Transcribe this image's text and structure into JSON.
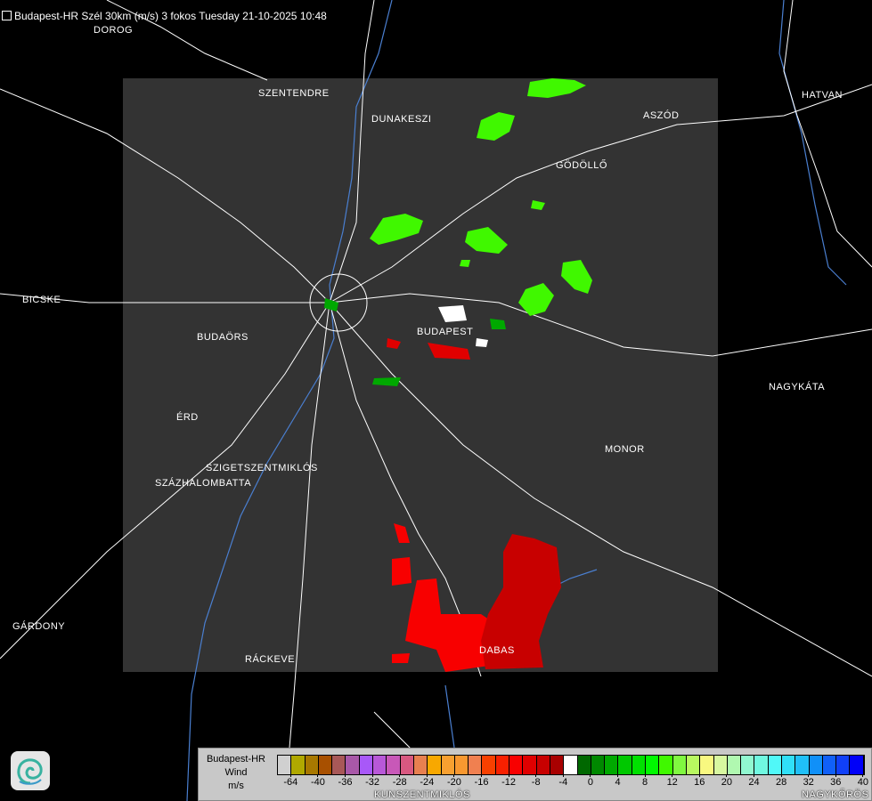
{
  "title": "Budapest-HR Szél 30km (m/s) 3 fokos Tuesday 21-10-2025 10:48",
  "cities": [
    {
      "name": "DOROG"
    },
    {
      "name": "SZENTENDRE"
    },
    {
      "name": "DUNAKESZI"
    },
    {
      "name": "ASZÓD"
    },
    {
      "name": "HATVAN"
    },
    {
      "name": "GÖDÖLLŐ"
    },
    {
      "name": "BICSKE"
    },
    {
      "name": "BUDAÖRS"
    },
    {
      "name": "BUDAPEST"
    },
    {
      "name": "NAGYKÁTA"
    },
    {
      "name": "ÉRD"
    },
    {
      "name": "MONOR"
    },
    {
      "name": "SZIGETSZENTMIKLÓS"
    },
    {
      "name": "SZÁZHALOMBATTA"
    },
    {
      "name": "GÁRDONY"
    },
    {
      "name": "RÁCKEVE"
    },
    {
      "name": "DABAS"
    },
    {
      "name": "KUNSZENTMIKLÓS"
    },
    {
      "name": "NAGYKŐRÖS"
    }
  ],
  "legend": {
    "line1": "Budapest-HR",
    "line2": "Wind",
    "line3": "m/s",
    "colors": [
      "#d0d0d0",
      "#b0a800",
      "#a87800",
      "#a85000",
      "#a85858",
      "#a858a8",
      "#a858f8",
      "#b858d8",
      "#c858b8",
      "#d85880",
      "#e88050",
      "#f8a800",
      "#f8a030",
      "#f89830",
      "#f08050",
      "#f84000",
      "#f82000",
      "#f80000",
      "#e00000",
      "#c80000",
      "#a80000",
      "#ffffff",
      "#006800",
      "#008800",
      "#00a800",
      "#00c800",
      "#00e000",
      "#00f800",
      "#40f800",
      "#80f840",
      "#b8f860",
      "#f8f880",
      "#d8f8a0",
      "#b0f8b0",
      "#90f8d0",
      "#70f8e0",
      "#50f8f8",
      "#30e0f8",
      "#20c0f8",
      "#1090f8",
      "#1060f8",
      "#1040f8",
      "#0000f8"
    ],
    "ticks": [
      "-64",
      "-40",
      "-36",
      "-32",
      "-28",
      "-24",
      "-20",
      "-16",
      "-12",
      "-8",
      "-4",
      "0",
      "4",
      "8",
      "12",
      "16",
      "20",
      "24",
      "28",
      "32",
      "36",
      "40"
    ]
  },
  "colors": {
    "radar_area": "#333333",
    "background": "#000000",
    "roads": "#ffffff",
    "rivers": "#4a7fd0"
  }
}
